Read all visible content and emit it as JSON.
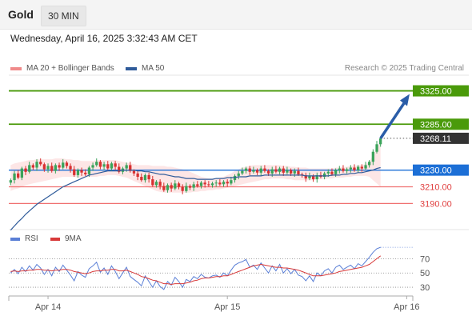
{
  "header": {
    "title": "Gold",
    "interval": "30 MIN"
  },
  "datetime": "Wednesday, April 16, 2025 3:32:43 AM CET",
  "copyright": "Research © 2025 Trading Central",
  "legend": [
    {
      "label": "MA 20 + Bollinger Bands",
      "color": "#f08a8a"
    },
    {
      "label": "MA 50",
      "color": "#2f5b9a"
    }
  ],
  "rsi_legend": [
    {
      "label": "RSI",
      "color": "#5a7fd6"
    },
    {
      "label": "9MA",
      "color": "#d83a3a"
    }
  ],
  "colors": {
    "green": "#4a9a0a",
    "blue": "#1c6fd6",
    "red": "#f05050",
    "dark": "#333333",
    "arrow": "#2a5da8"
  },
  "chart_data": {
    "type": "candlestick",
    "y_range": [
      3175,
      3338
    ],
    "x_ticks": [
      {
        "label": "Apr 14",
        "index": 10
      },
      {
        "label": "Apr 15",
        "index": 58
      },
      {
        "label": "Apr 16",
        "index": 106
      }
    ],
    "price_levels": [
      {
        "value": 3325.0,
        "label": "3325.00",
        "style": "resistance"
      },
      {
        "value": 3285.0,
        "label": "3285.00",
        "style": "resistance"
      },
      {
        "value": 3268.11,
        "label": "3268.11",
        "style": "last"
      },
      {
        "value": 3230.0,
        "label": "3230.00",
        "style": "pivot"
      },
      {
        "value": 3210.0,
        "label": "3210.00",
        "style": "support"
      },
      {
        "value": 3190.0,
        "label": "3190.00",
        "style": "support"
      }
    ],
    "closes": [
      3218,
      3226,
      3221,
      3232,
      3228,
      3236,
      3233,
      3240,
      3237,
      3231,
      3235,
      3229,
      3236,
      3233,
      3239,
      3235,
      3231,
      3224,
      3230,
      3227,
      3225,
      3233,
      3236,
      3240,
      3234,
      3237,
      3232,
      3238,
      3234,
      3228,
      3232,
      3236,
      3229,
      3226,
      3222,
      3218,
      3224,
      3219,
      3212,
      3216,
      3211,
      3206,
      3212,
      3208,
      3214,
      3210,
      3205,
      3211,
      3209,
      3213,
      3211,
      3215,
      3213,
      3212,
      3214,
      3215,
      3213,
      3216,
      3214,
      3218,
      3223,
      3226,
      3229,
      3232,
      3228,
      3230,
      3227,
      3232,
      3229,
      3226,
      3231,
      3228,
      3232,
      3227,
      3230,
      3226,
      3229,
      3225,
      3224,
      3220,
      3223,
      3219,
      3224,
      3222,
      3226,
      3228,
      3225,
      3230,
      3232,
      3229,
      3231,
      3233,
      3230,
      3234,
      3232,
      3236,
      3240,
      3252,
      3261,
      3268
    ],
    "ma50": [
      3158,
      3163,
      3168,
      3172,
      3177,
      3181,
      3185,
      3189,
      3192,
      3195,
      3198,
      3201,
      3204,
      3207,
      3210,
      3212,
      3214,
      3216,
      3218,
      3220,
      3222,
      3224,
      3225,
      3226,
      3227,
      3228,
      3229,
      3229,
      3229,
      3229,
      3230,
      3230,
      3230,
      3230,
      3229,
      3229,
      3228,
      3228,
      3227,
      3226,
      3225,
      3225,
      3224,
      3223,
      3222,
      3222,
      3221,
      3220,
      3220,
      3220,
      3219,
      3219,
      3219,
      3219,
      3219,
      3220,
      3220,
      3220,
      3221,
      3221,
      3221,
      3222,
      3222,
      3222,
      3223,
      3223,
      3223,
      3223,
      3224,
      3224,
      3224,
      3224,
      3224,
      3224,
      3224,
      3224,
      3224,
      3224,
      3224,
      3223,
      3223,
      3223,
      3223,
      3223,
      3223,
      3223,
      3224,
      3224,
      3224,
      3225,
      3225,
      3226,
      3226,
      3227,
      3227,
      3228,
      3229,
      3230,
      3232,
      3233
    ],
    "bb_upper": [
      3236,
      3238,
      3239,
      3240,
      3241,
      3242,
      3242,
      3243,
      3243,
      3243,
      3243,
      3243,
      3244,
      3244,
      3244,
      3243,
      3243,
      3242,
      3242,
      3241,
      3241,
      3241,
      3241,
      3242,
      3242,
      3242,
      3242,
      3242,
      3242,
      3241,
      3240,
      3239,
      3238,
      3237,
      3236,
      3236,
      3236,
      3236,
      3235,
      3235,
      3235,
      3235,
      3234,
      3234,
      3233,
      3232,
      3231,
      3230,
      3228,
      3226,
      3224,
      3222,
      3221,
      3220,
      3220,
      3220,
      3221,
      3222,
      3224,
      3226,
      3229,
      3231,
      3233,
      3234,
      3235,
      3236,
      3236,
      3236,
      3236,
      3236,
      3236,
      3236,
      3236,
      3235,
      3235,
      3234,
      3234,
      3233,
      3233,
      3233,
      3232,
      3232,
      3232,
      3232,
      3232,
      3232,
      3232,
      3233,
      3233,
      3234,
      3234,
      3235,
      3235,
      3236,
      3236,
      3237,
      3240,
      3248,
      3256,
      3264
    ],
    "bb_lower": [
      3205,
      3207,
      3208,
      3210,
      3212,
      3213,
      3214,
      3215,
      3216,
      3217,
      3218,
      3219,
      3220,
      3221,
      3222,
      3222,
      3222,
      3222,
      3221,
      3221,
      3221,
      3222,
      3222,
      3222,
      3223,
      3223,
      3224,
      3224,
      3224,
      3223,
      3222,
      3221,
      3219,
      3217,
      3215,
      3213,
      3211,
      3209,
      3207,
      3205,
      3204,
      3203,
      3203,
      3203,
      3203,
      3203,
      3203,
      3203,
      3203,
      3204,
      3204,
      3205,
      3205,
      3206,
      3206,
      3207,
      3207,
      3208,
      3209,
      3210,
      3211,
      3212,
      3213,
      3214,
      3215,
      3216,
      3217,
      3218,
      3219,
      3219,
      3220,
      3220,
      3220,
      3220,
      3219,
      3219,
      3218,
      3218,
      3218,
      3218,
      3218,
      3218,
      3219,
      3219,
      3219,
      3220,
      3220,
      3221,
      3221,
      3221,
      3222,
      3222,
      3223,
      3223,
      3223,
      3223,
      3222,
      3218,
      3214,
      3210
    ],
    "rsi_levels": [
      70,
      50,
      30
    ],
    "rsi_range": [
      20,
      85
    ],
    "rsi": [
      50,
      55,
      49,
      58,
      52,
      60,
      54,
      62,
      57,
      48,
      55,
      46,
      58,
      52,
      61,
      54,
      47,
      39,
      52,
      47,
      44,
      56,
      60,
      65,
      51,
      57,
      48,
      60,
      52,
      42,
      50,
      58,
      45,
      41,
      37,
      32,
      46,
      38,
      30,
      39,
      31,
      27,
      38,
      33,
      44,
      38,
      30,
      41,
      38,
      45,
      42,
      48,
      44,
      43,
      46,
      47,
      44,
      50,
      46,
      54,
      61,
      64,
      66,
      69,
      58,
      61,
      55,
      64,
      57,
      50,
      60,
      53,
      62,
      50,
      56,
      49,
      55,
      47,
      45,
      39,
      46,
      38,
      50,
      46,
      53,
      56,
      50,
      58,
      61,
      55,
      58,
      61,
      56,
      63,
      60,
      66,
      72,
      79,
      84,
      86
    ],
    "rsi_ma": [
      52,
      53,
      52,
      53,
      53,
      54,
      54,
      55,
      55,
      54,
      54,
      53,
      54,
      54,
      55,
      55,
      54,
      52,
      51,
      50,
      49,
      50,
      52,
      53,
      53,
      54,
      54,
      55,
      55,
      53,
      53,
      54,
      52,
      50,
      48,
      45,
      44,
      42,
      40,
      39,
      37,
      35,
      35,
      34,
      35,
      35,
      35,
      36,
      37,
      39,
      40,
      42,
      43,
      43,
      44,
      45,
      45,
      46,
      46,
      48,
      50,
      52,
      54,
      56,
      58,
      60,
      61,
      62,
      61,
      60,
      59,
      58,
      58,
      57,
      57,
      56,
      55,
      54,
      52,
      50,
      48,
      46,
      46,
      46,
      47,
      48,
      49,
      50,
      52,
      53,
      54,
      55,
      56,
      57,
      58,
      60,
      62,
      66,
      70,
      74
    ]
  }
}
